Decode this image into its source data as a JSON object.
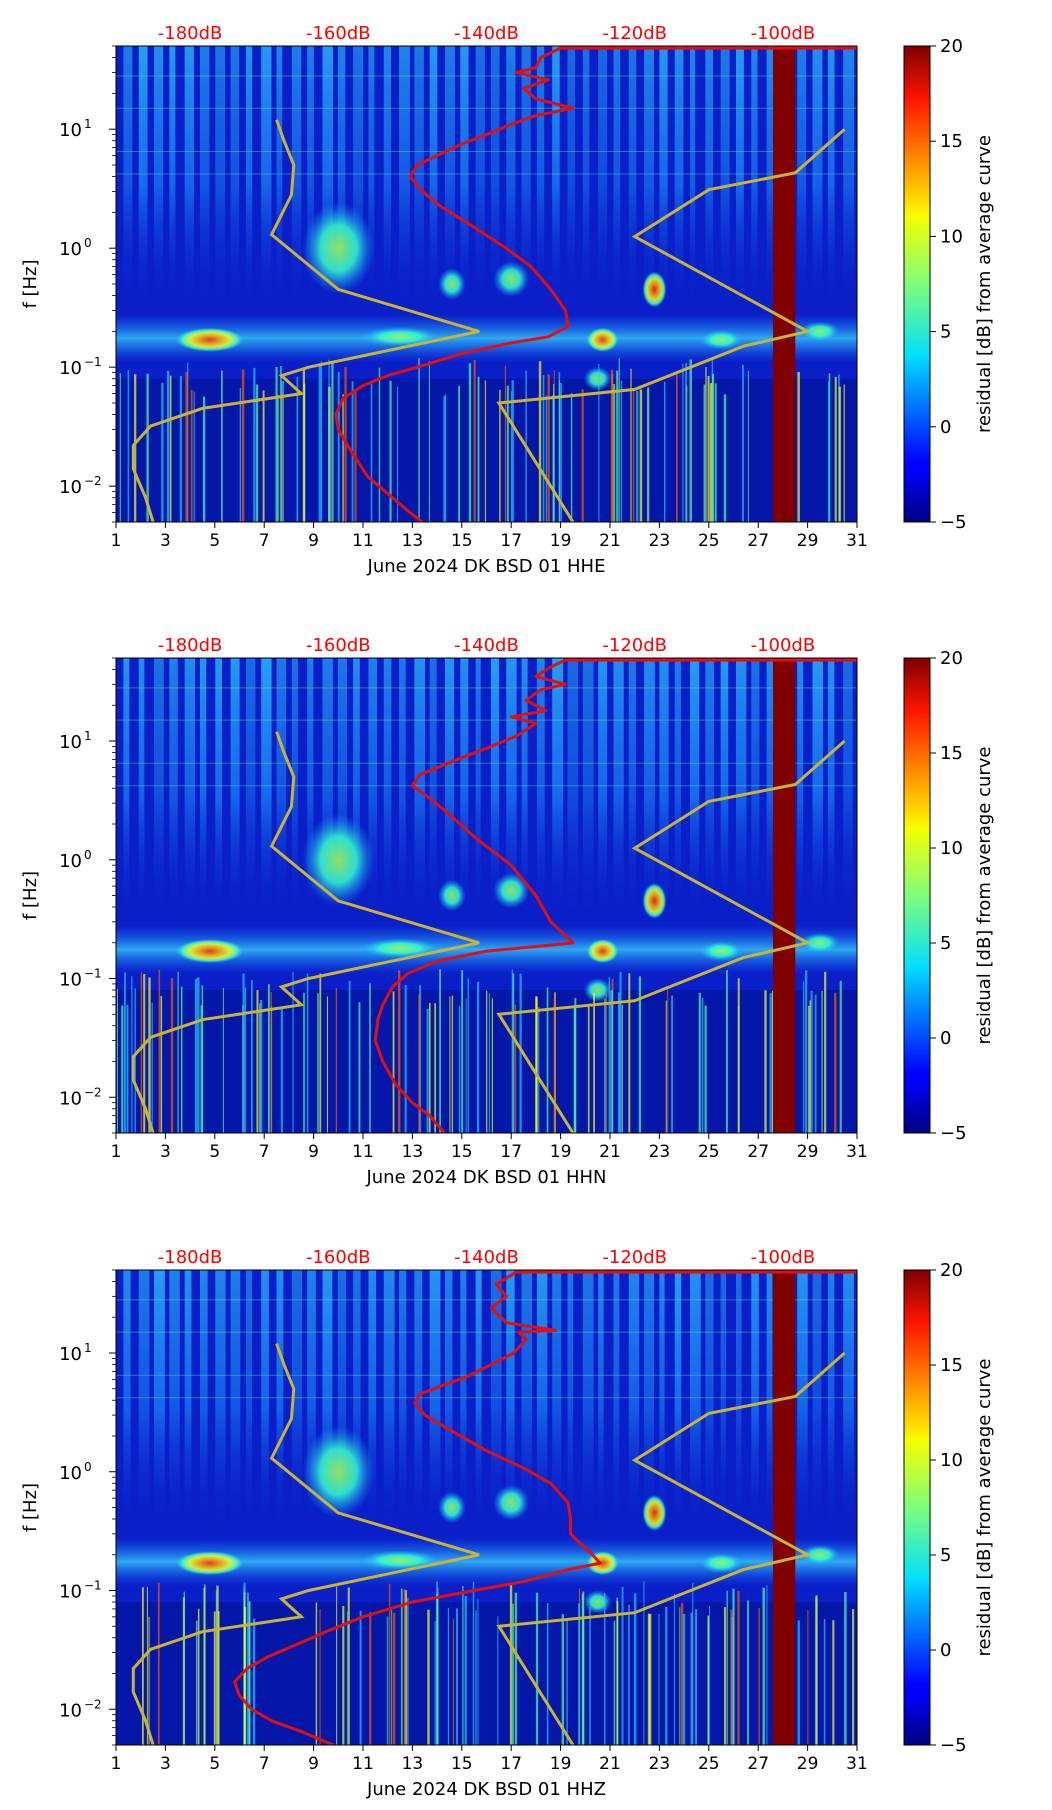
{
  "colors": {
    "median_curve": "#e01010",
    "model_curves": "#c8b438",
    "top_db_labels": "#ff0000",
    "outage_band": "#800000"
  },
  "chart_data": [
    {
      "type": "heatmap",
      "title": "",
      "xlabel": "June 2024 DK BSD 01 HHE",
      "ylabel": "f [Hz]",
      "x_ticks": [
        "1",
        "3",
        "5",
        "7",
        "9",
        "11",
        "13",
        "15",
        "17",
        "19",
        "21",
        "23",
        "25",
        "27",
        "29",
        "31"
      ],
      "xlim": [
        1,
        31
      ],
      "y_scale": "log",
      "ylim": [
        0.005,
        50
      ],
      "y_ticks": [
        {
          "base": "10",
          "exp": "−2"
        },
        {
          "base": "10",
          "exp": "−1"
        },
        {
          "base": "10",
          "exp": "0"
        },
        {
          "base": "10",
          "exp": "1"
        }
      ],
      "y_tick_values": [
        0.01,
        0.1,
        1,
        10
      ],
      "top_labels": [
        "-180dB",
        "-160dB",
        "-140dB",
        "-120dB",
        "-100dB"
      ],
      "top_label_days": [
        4,
        10,
        16,
        22,
        28
      ],
      "colorbar": {
        "label": "residual [dB] from average curve",
        "ticks": [
          "20",
          "15",
          "10",
          "5",
          "0",
          "−5"
        ],
        "min": -5,
        "max": 20
      },
      "outage_days": [
        27.6,
        28.5
      ],
      "median_curve": [
        [
          13.4,
          0.005
        ],
        [
          12.9,
          0.006
        ],
        [
          12.2,
          0.008
        ],
        [
          11.2,
          0.012
        ],
        [
          10.5,
          0.02
        ],
        [
          10.0,
          0.03
        ],
        [
          9.9,
          0.04
        ],
        [
          10.2,
          0.055
        ],
        [
          11.0,
          0.07
        ],
        [
          12.0,
          0.085
        ],
        [
          13.2,
          0.1
        ],
        [
          15.0,
          0.13
        ],
        [
          17.0,
          0.16
        ],
        [
          18.5,
          0.18
        ],
        [
          19.3,
          0.22
        ],
        [
          19.2,
          0.3
        ],
        [
          18.6,
          0.45
        ],
        [
          17.8,
          0.7
        ],
        [
          16.8,
          1.0
        ],
        [
          15.5,
          1.5
        ],
        [
          14.2,
          2.2
        ],
        [
          13.4,
          3.0
        ],
        [
          12.9,
          4.0
        ],
        [
          13.2,
          5.0
        ],
        [
          14.0,
          6.0
        ],
        [
          15.0,
          7.5
        ],
        [
          16.0,
          9.0
        ],
        [
          17.0,
          11.0
        ],
        [
          18.0,
          13.0
        ],
        [
          19.5,
          15.0
        ],
        [
          18.0,
          18.0
        ],
        [
          17.5,
          22.0
        ],
        [
          18.5,
          26.0
        ],
        [
          17.2,
          30.0
        ],
        [
          18.0,
          33.0
        ],
        [
          18.2,
          40.0
        ],
        [
          19.0,
          48.0
        ],
        [
          31.0,
          48.0
        ]
      ],
      "low_model": [
        [
          2.5,
          0.005
        ],
        [
          2.2,
          0.008
        ],
        [
          1.7,
          0.014
        ],
        [
          1.7,
          0.022
        ],
        [
          2.4,
          0.032
        ],
        [
          4.5,
          0.045
        ],
        [
          8.5,
          0.06
        ],
        [
          7.7,
          0.085
        ],
        [
          8.8,
          0.1
        ],
        [
          15.7,
          0.2
        ],
        [
          10.0,
          0.45
        ],
        [
          7.3,
          1.3
        ],
        [
          8.1,
          2.8
        ],
        [
          8.2,
          5.0
        ],
        [
          7.8,
          8.0
        ],
        [
          7.5,
          12.0
        ]
      ],
      "high_model": [
        [
          19.5,
          0.005
        ],
        [
          16.5,
          0.05
        ],
        [
          22.0,
          0.065
        ],
        [
          26.4,
          0.15
        ],
        [
          29.0,
          0.2
        ],
        [
          22.0,
          1.25
        ],
        [
          25.0,
          3.1
        ],
        [
          28.5,
          4.3
        ],
        [
          30.5,
          10.0
        ]
      ]
    },
    {
      "type": "heatmap",
      "title": "",
      "xlabel": "June 2024 DK BSD 01 HHN",
      "ylabel": "f [Hz]",
      "x_ticks": [
        "1",
        "3",
        "5",
        "7",
        "9",
        "11",
        "13",
        "15",
        "17",
        "19",
        "21",
        "23",
        "25",
        "27",
        "29",
        "31"
      ],
      "xlim": [
        1,
        31
      ],
      "y_scale": "log",
      "ylim": [
        0.005,
        50
      ],
      "y_ticks": [
        {
          "base": "10",
          "exp": "−2"
        },
        {
          "base": "10",
          "exp": "−1"
        },
        {
          "base": "10",
          "exp": "0"
        },
        {
          "base": "10",
          "exp": "1"
        }
      ],
      "y_tick_values": [
        0.01,
        0.1,
        1,
        10
      ],
      "top_labels": [
        "-180dB",
        "-160dB",
        "-140dB",
        "-120dB",
        "-100dB"
      ],
      "top_label_days": [
        4,
        10,
        16,
        22,
        28
      ],
      "colorbar": {
        "label": "residual [dB] from average curve",
        "ticks": [
          "20",
          "15",
          "10",
          "5",
          "0",
          "−5"
        ],
        "min": -5,
        "max": 20
      },
      "outage_days": [
        27.6,
        28.5
      ],
      "median_curve": [
        [
          14.3,
          0.005
        ],
        [
          13.7,
          0.007
        ],
        [
          13.0,
          0.009
        ],
        [
          12.3,
          0.013
        ],
        [
          11.8,
          0.02
        ],
        [
          11.5,
          0.03
        ],
        [
          11.6,
          0.045
        ],
        [
          11.8,
          0.06
        ],
        [
          12.2,
          0.085
        ],
        [
          12.8,
          0.11
        ],
        [
          14.0,
          0.14
        ],
        [
          16.0,
          0.17
        ],
        [
          18.5,
          0.19
        ],
        [
          19.5,
          0.2
        ],
        [
          18.6,
          0.3
        ],
        [
          18.0,
          0.5
        ],
        [
          17.0,
          0.9
        ],
        [
          15.6,
          1.5
        ],
        [
          14.4,
          2.5
        ],
        [
          13.7,
          3.3
        ],
        [
          13.0,
          4.2
        ],
        [
          13.3,
          5.2
        ],
        [
          14.2,
          6.2
        ],
        [
          15.2,
          7.5
        ],
        [
          16.2,
          9.0
        ],
        [
          17.2,
          11.0
        ],
        [
          18.0,
          14.0
        ],
        [
          17.0,
          16.0
        ],
        [
          18.4,
          18.0
        ],
        [
          17.6,
          22.0
        ],
        [
          18.2,
          27.0
        ],
        [
          19.2,
          30.0
        ],
        [
          18.0,
          35.0
        ],
        [
          18.6,
          42.0
        ],
        [
          19.2,
          48.0
        ],
        [
          31.0,
          48.0
        ]
      ],
      "low_model": [
        [
          2.5,
          0.005
        ],
        [
          2.2,
          0.008
        ],
        [
          1.7,
          0.014
        ],
        [
          1.7,
          0.022
        ],
        [
          2.4,
          0.032
        ],
        [
          4.5,
          0.045
        ],
        [
          8.5,
          0.06
        ],
        [
          7.7,
          0.085
        ],
        [
          8.8,
          0.1
        ],
        [
          15.7,
          0.2
        ],
        [
          10.0,
          0.45
        ],
        [
          7.3,
          1.3
        ],
        [
          8.1,
          2.8
        ],
        [
          8.2,
          5.0
        ],
        [
          7.8,
          8.0
        ],
        [
          7.5,
          12.0
        ]
      ],
      "high_model": [
        [
          19.5,
          0.005
        ],
        [
          16.5,
          0.05
        ],
        [
          22.0,
          0.065
        ],
        [
          26.4,
          0.15
        ],
        [
          29.0,
          0.2
        ],
        [
          22.0,
          1.25
        ],
        [
          25.0,
          3.1
        ],
        [
          28.5,
          4.3
        ],
        [
          30.5,
          10.0
        ]
      ]
    },
    {
      "type": "heatmap",
      "title": "",
      "xlabel": "June 2024 DK BSD 01 HHZ",
      "ylabel": "f [Hz]",
      "x_ticks": [
        "1",
        "3",
        "5",
        "7",
        "9",
        "11",
        "13",
        "15",
        "17",
        "19",
        "21",
        "23",
        "25",
        "27",
        "29",
        "31"
      ],
      "xlim": [
        1,
        31
      ],
      "y_scale": "log",
      "ylim": [
        0.005,
        50
      ],
      "y_ticks": [
        {
          "base": "10",
          "exp": "−2"
        },
        {
          "base": "10",
          "exp": "−1"
        },
        {
          "base": "10",
          "exp": "0"
        },
        {
          "base": "10",
          "exp": "1"
        }
      ],
      "y_tick_values": [
        0.01,
        0.1,
        1,
        10
      ],
      "top_labels": [
        "-180dB",
        "-160dB",
        "-140dB",
        "-120dB",
        "-100dB"
      ],
      "top_label_days": [
        4,
        10,
        16,
        22,
        28
      ],
      "colorbar": {
        "label": "residual [dB] from average curve",
        "ticks": [
          "20",
          "15",
          "10",
          "5",
          "0",
          "−5"
        ],
        "min": -5,
        "max": 20
      },
      "outage_days": [
        27.6,
        28.5
      ],
      "median_curve": [
        [
          9.8,
          0.005
        ],
        [
          8.5,
          0.0065
        ],
        [
          7.3,
          0.008
        ],
        [
          6.5,
          0.01
        ],
        [
          6.0,
          0.013
        ],
        [
          5.8,
          0.017
        ],
        [
          6.3,
          0.022
        ],
        [
          7.2,
          0.028
        ],
        [
          8.3,
          0.035
        ],
        [
          9.5,
          0.045
        ],
        [
          11.0,
          0.06
        ],
        [
          13.0,
          0.08
        ],
        [
          15.5,
          0.1
        ],
        [
          17.6,
          0.12
        ],
        [
          19.3,
          0.15
        ],
        [
          20.6,
          0.17
        ],
        [
          20.2,
          0.21
        ],
        [
          19.7,
          0.26
        ],
        [
          19.4,
          0.3
        ],
        [
          19.4,
          0.4
        ],
        [
          19.3,
          0.55
        ],
        [
          18.6,
          0.8
        ],
        [
          17.4,
          1.1
        ],
        [
          16.0,
          1.5
        ],
        [
          14.6,
          2.2
        ],
        [
          13.5,
          3.0
        ],
        [
          13.1,
          3.8
        ],
        [
          13.3,
          4.5
        ],
        [
          14.2,
          5.3
        ],
        [
          15.2,
          6.3
        ],
        [
          16.2,
          8.0
        ],
        [
          17.1,
          10.0
        ],
        [
          17.6,
          13.0
        ],
        [
          17.3,
          15.0
        ],
        [
          18.8,
          15.5
        ],
        [
          16.8,
          18.0
        ],
        [
          16.2,
          24.0
        ],
        [
          16.8,
          30.0
        ],
        [
          16.4,
          38.0
        ],
        [
          17.2,
          48.0
        ],
        [
          31.0,
          48.0
        ]
      ],
      "low_model": [
        [
          2.5,
          0.005
        ],
        [
          2.2,
          0.008
        ],
        [
          1.7,
          0.014
        ],
        [
          1.7,
          0.022
        ],
        [
          2.4,
          0.032
        ],
        [
          4.5,
          0.045
        ],
        [
          8.5,
          0.06
        ],
        [
          7.7,
          0.085
        ],
        [
          8.8,
          0.1
        ],
        [
          15.7,
          0.2
        ],
        [
          10.0,
          0.45
        ],
        [
          7.3,
          1.3
        ],
        [
          8.1,
          2.8
        ],
        [
          8.2,
          5.0
        ],
        [
          7.8,
          8.0
        ],
        [
          7.5,
          12.0
        ]
      ],
      "high_model": [
        [
          19.5,
          0.005
        ],
        [
          16.5,
          0.05
        ],
        [
          22.0,
          0.065
        ],
        [
          26.4,
          0.15
        ],
        [
          29.0,
          0.2
        ],
        [
          22.0,
          1.25
        ],
        [
          25.0,
          3.1
        ],
        [
          28.5,
          4.3
        ],
        [
          30.5,
          10.0
        ]
      ]
    }
  ]
}
